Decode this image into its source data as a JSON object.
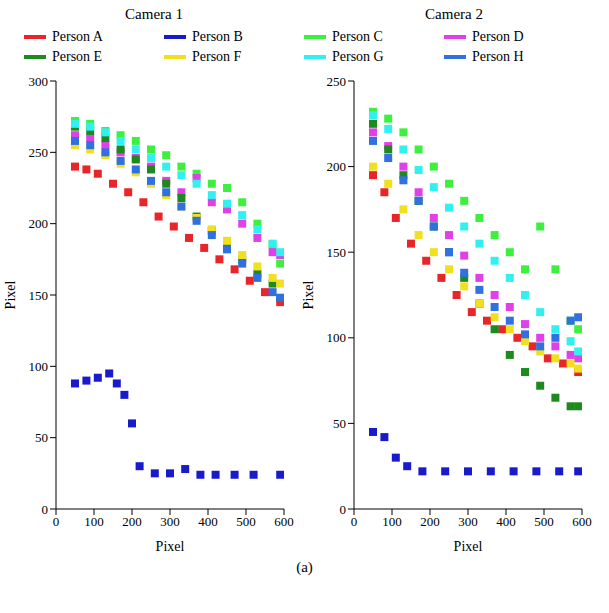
{
  "caption": "(a)",
  "chart_data": [
    {
      "type": "scatter",
      "title": "Camera 1",
      "x_label": "Pixel",
      "y_label": "Pixel",
      "xlim": [
        0,
        600
      ],
      "xticks": [
        0,
        100,
        200,
        300,
        400,
        500,
        600
      ],
      "ylim": [
        0,
        300
      ],
      "yticks": [
        0,
        50,
        100,
        150,
        200,
        250,
        300
      ],
      "legend": "top",
      "marker": "square",
      "series": [
        {
          "name": "Person A",
          "color": "#e8262a",
          "x": [
            50,
            80,
            110,
            150,
            190,
            230,
            270,
            310,
            350,
            390,
            430,
            470,
            510,
            550,
            590
          ],
          "values": [
            240,
            238,
            235,
            228,
            222,
            215,
            205,
            198,
            190,
            183,
            175,
            168,
            160,
            152,
            145
          ]
        },
        {
          "name": "Person B",
          "color": "#1a1acd",
          "x": [
            50,
            80,
            110,
            140,
            160,
            180,
            200,
            220,
            260,
            300,
            340,
            380,
            420,
            470,
            520,
            590
          ],
          "values": [
            88,
            90,
            92,
            95,
            88,
            80,
            60,
            30,
            25,
            25,
            28,
            24,
            24,
            24,
            24,
            24
          ]
        },
        {
          "name": "Person C",
          "color": "#3ef03e",
          "x": [
            50,
            90,
            130,
            170,
            210,
            250,
            290,
            330,
            370,
            410,
            450,
            490,
            530,
            570,
            590
          ],
          "values": [
            272,
            270,
            265,
            262,
            258,
            252,
            248,
            240,
            235,
            228,
            225,
            215,
            200,
            185,
            172
          ]
        },
        {
          "name": "Person D",
          "color": "#e040e8",
          "x": [
            50,
            90,
            130,
            170,
            210,
            250,
            290,
            330,
            370,
            410,
            450,
            490,
            530,
            570,
            590
          ],
          "values": [
            262,
            260,
            255,
            250,
            246,
            240,
            230,
            222,
            232,
            215,
            210,
            200,
            190,
            180,
            178
          ]
        },
        {
          "name": "Person E",
          "color": "#1e8a1e",
          "x": [
            50,
            90,
            130,
            170,
            210,
            250,
            290,
            330,
            370,
            410,
            450,
            490,
            530,
            570,
            590
          ],
          "values": [
            268,
            265,
            260,
            252,
            245,
            238,
            228,
            218,
            205,
            195,
            185,
            175,
            165,
            158,
            148
          ]
        },
        {
          "name": "Person F",
          "color": "#f0e020",
          "x": [
            50,
            90,
            130,
            170,
            210,
            250,
            290,
            330,
            370,
            410,
            450,
            490,
            530,
            570,
            590
          ],
          "values": [
            255,
            252,
            248,
            242,
            236,
            228,
            220,
            212,
            204,
            196,
            188,
            178,
            170,
            162,
            158
          ]
        },
        {
          "name": "Person G",
          "color": "#30f0f0",
          "x": [
            50,
            90,
            130,
            170,
            210,
            250,
            290,
            330,
            370,
            410,
            450,
            490,
            530,
            570,
            590
          ],
          "values": [
            270,
            268,
            264,
            258,
            252,
            246,
            240,
            234,
            228,
            220,
            214,
            206,
            196,
            186,
            180
          ]
        },
        {
          "name": "Person H",
          "color": "#3070e0",
          "x": [
            50,
            90,
            130,
            170,
            210,
            250,
            290,
            330,
            370,
            410,
            450,
            490,
            530,
            570,
            590
          ],
          "values": [
            258,
            255,
            250,
            244,
            238,
            230,
            222,
            212,
            202,
            192,
            182,
            172,
            162,
            152,
            148
          ]
        }
      ]
    },
    {
      "type": "scatter",
      "title": "Camera 2",
      "x_label": "Pixel",
      "y_label": "Pixel",
      "xlim": [
        0,
        600
      ],
      "xticks": [
        0,
        100,
        200,
        300,
        400,
        500,
        600
      ],
      "ylim": [
        0,
        250
      ],
      "yticks": [
        0,
        50,
        100,
        150,
        200,
        250
      ],
      "legend": "top",
      "marker": "square",
      "series": [
        {
          "name": "Person A",
          "color": "#e8262a",
          "x": [
            50,
            80,
            110,
            150,
            190,
            230,
            270,
            310,
            350,
            390,
            430,
            470,
            510,
            550,
            590
          ],
          "values": [
            195,
            185,
            170,
            155,
            145,
            135,
            125,
            115,
            110,
            105,
            100,
            95,
            88,
            85,
            80
          ]
        },
        {
          "name": "Person B",
          "color": "#1a1acd",
          "x": [
            50,
            80,
            110,
            140,
            180,
            240,
            300,
            360,
            420,
            480,
            540,
            590
          ],
          "values": [
            45,
            42,
            30,
            25,
            22,
            22,
            22,
            22,
            22,
            22,
            22,
            22
          ]
        },
        {
          "name": "Person C",
          "color": "#3ef03e",
          "x": [
            50,
            90,
            130,
            170,
            210,
            250,
            290,
            330,
            370,
            410,
            450,
            490,
            530,
            570,
            590
          ],
          "values": [
            232,
            228,
            220,
            210,
            200,
            190,
            180,
            170,
            160,
            150,
            140,
            165,
            140,
            110,
            105
          ]
        },
        {
          "name": "Person D",
          "color": "#e040e8",
          "x": [
            50,
            90,
            130,
            170,
            210,
            250,
            290,
            330,
            370,
            410,
            450,
            490,
            530,
            570,
            590
          ],
          "values": [
            220,
            212,
            200,
            185,
            170,
            160,
            148,
            135,
            125,
            118,
            108,
            100,
            95,
            90,
            88
          ]
        },
        {
          "name": "Person E",
          "color": "#1e8a1e",
          "x": [
            50,
            90,
            130,
            170,
            210,
            250,
            290,
            330,
            370,
            410,
            450,
            490,
            530,
            570,
            590
          ],
          "values": [
            225,
            210,
            195,
            180,
            165,
            150,
            135,
            120,
            105,
            90,
            80,
            72,
            65,
            60,
            60
          ]
        },
        {
          "name": "Person F",
          "color": "#f0e020",
          "x": [
            50,
            90,
            130,
            170,
            210,
            250,
            290,
            330,
            370,
            410,
            450,
            490,
            530,
            570,
            590
          ],
          "values": [
            200,
            190,
            175,
            160,
            150,
            140,
            130,
            120,
            112,
            105,
            98,
            92,
            88,
            85,
            82
          ]
        },
        {
          "name": "Person G",
          "color": "#30f0f0",
          "x": [
            50,
            90,
            130,
            170,
            210,
            250,
            290,
            330,
            370,
            410,
            450,
            490,
            530,
            570,
            590
          ],
          "values": [
            230,
            222,
            210,
            198,
            188,
            176,
            165,
            155,
            145,
            135,
            125,
            115,
            105,
            98,
            92
          ]
        },
        {
          "name": "Person H",
          "color": "#3070e0",
          "x": [
            50,
            90,
            130,
            170,
            210,
            250,
            290,
            330,
            370,
            410,
            450,
            490,
            530,
            570,
            590
          ],
          "values": [
            215,
            205,
            192,
            180,
            165,
            150,
            138,
            128,
            118,
            110,
            102,
            95,
            100,
            110,
            112
          ]
        }
      ]
    }
  ]
}
